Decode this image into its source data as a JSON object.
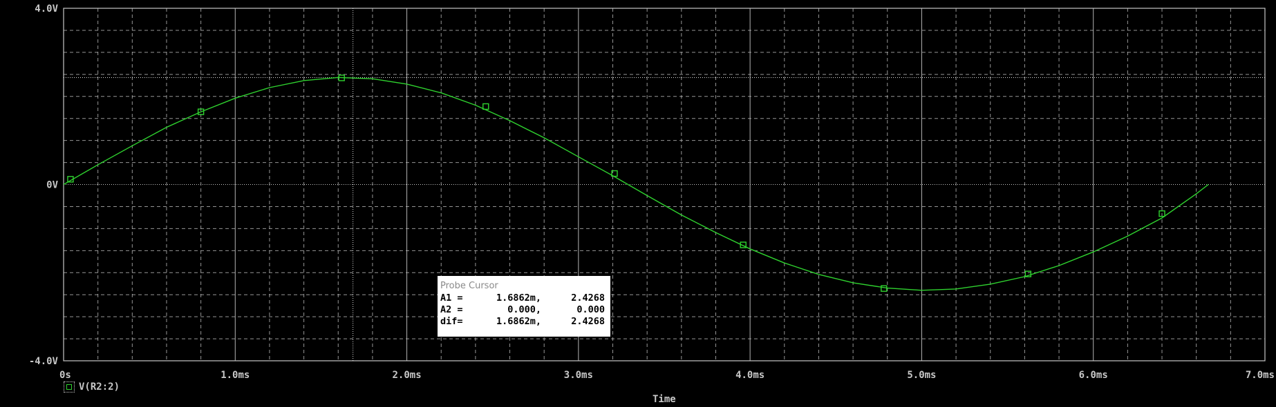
{
  "chart_data": {
    "type": "line",
    "xlabel": "Time",
    "ylabel": "",
    "xlim": [
      0,
      7.0
    ],
    "ylim": [
      -4.0,
      4.0
    ],
    "x_unit": "ms",
    "grid": true,
    "x_ticks": [
      {
        "value": 0,
        "label": "0s"
      },
      {
        "value": 1.0,
        "label": "1.0ms"
      },
      {
        "value": 2.0,
        "label": "2.0ms"
      },
      {
        "value": 3.0,
        "label": "3.0ms"
      },
      {
        "value": 4.0,
        "label": "4.0ms"
      },
      {
        "value": 5.0,
        "label": "5.0ms"
      },
      {
        "value": 6.0,
        "label": "6.0ms"
      },
      {
        "value": 7.0,
        "label": "7.0ms"
      }
    ],
    "y_ticks": [
      {
        "value": 4.0,
        "label": "4.0V"
      },
      {
        "value": 0,
        "label": "0V"
      },
      {
        "value": -4.0,
        "label": "-4.0V"
      }
    ],
    "series": [
      {
        "name": "V(R2:2)",
        "color": "#2fd32f",
        "x": [
          0.0,
          0.2,
          0.4,
          0.6,
          0.8,
          1.0,
          1.2,
          1.4,
          1.6,
          1.8,
          2.0,
          2.2,
          2.4,
          2.6,
          2.8,
          3.0,
          3.2,
          3.4,
          3.6,
          3.8,
          4.0,
          4.2,
          4.4,
          4.6,
          4.8,
          5.0,
          5.2,
          5.4,
          5.6,
          5.8,
          6.0,
          6.2,
          6.4,
          6.6,
          6.67
        ],
        "y": [
          0.0,
          0.45,
          0.88,
          1.3,
          1.65,
          1.96,
          2.2,
          2.36,
          2.43,
          2.4,
          2.28,
          2.08,
          1.8,
          1.45,
          1.06,
          0.63,
          0.2,
          -0.25,
          -0.69,
          -1.09,
          -1.46,
          -1.78,
          -2.04,
          -2.23,
          -2.35,
          -2.4,
          -2.37,
          -2.26,
          -2.09,
          -1.84,
          -1.53,
          -1.17,
          -0.76,
          -0.21,
          0.0
        ],
        "markers": [
          {
            "x": 0.04,
            "y": 0.12
          },
          {
            "x": 0.8,
            "y": 1.65
          },
          {
            "x": 1.62,
            "y": 2.42
          },
          {
            "x": 2.46,
            "y": 1.77
          },
          {
            "x": 3.21,
            "y": 0.25
          },
          {
            "x": 3.96,
            "y": -1.37
          },
          {
            "x": 4.78,
            "y": -2.36
          },
          {
            "x": 5.62,
            "y": -2.03
          },
          {
            "x": 6.4,
            "y": -0.66
          }
        ]
      }
    ],
    "cursor": {
      "x": 1.6862,
      "y": 2.4268
    }
  },
  "probe_cursor": {
    "title": "Probe Cursor",
    "rows": [
      {
        "label": "A1 =",
        "v1": "1.6862m,",
        "v2": "2.4268"
      },
      {
        "label": "A2 =",
        "v1": "0.000,",
        "v2": "0.000"
      },
      {
        "label": "dif=",
        "v1": "1.6862m,",
        "v2": "2.4268"
      }
    ]
  },
  "legend": {
    "label": "V(R2:2)"
  },
  "colors": {
    "background": "#000000",
    "grid": "#c8c8c8",
    "trace": "#2fd32f",
    "text": "#c8c8c8"
  }
}
